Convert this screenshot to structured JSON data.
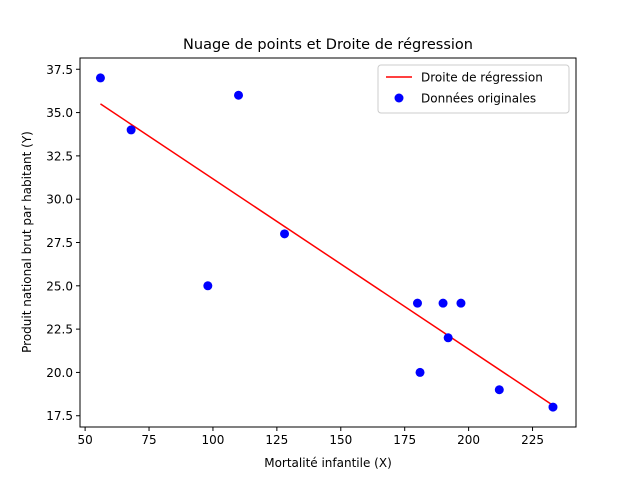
{
  "chart_data": {
    "type": "scatter",
    "title": "Nuage de points et Droite de régression",
    "xlabel": "Mortalité infantile (X)",
    "ylabel": "Produit national brut par habitant (Y)",
    "xlim": [
      48,
      242
    ],
    "ylim": [
      16.85,
      38.15
    ],
    "xticks": [
      50,
      75,
      100,
      125,
      150,
      175,
      200,
      225
    ],
    "xtick_labels": [
      "50",
      "75",
      "100",
      "125",
      "150",
      "175",
      "200",
      "225"
    ],
    "yticks": [
      17.5,
      20.0,
      22.5,
      25.0,
      27.5,
      30.0,
      32.5,
      35.0,
      37.5
    ],
    "ytick_labels": [
      "17.5",
      "20.0",
      "22.5",
      "25.0",
      "27.5",
      "30.0",
      "32.5",
      "35.0",
      "37.5"
    ],
    "grid": false,
    "legend_position": "top-right",
    "series": [
      {
        "name": "Droite de régression",
        "kind": "line",
        "color": "#ff0000",
        "x": [
          56,
          233
        ],
        "y": [
          35.5,
          18.1
        ]
      },
      {
        "name": "Données originales",
        "kind": "scatter",
        "color": "#0000ff",
        "x": [
          56,
          68,
          98,
          110,
          128,
          180,
          181,
          190,
          192,
          197,
          212,
          233
        ],
        "y": [
          37,
          34,
          25,
          36,
          28,
          24,
          20,
          24,
          22,
          24,
          19,
          18
        ]
      }
    ]
  }
}
